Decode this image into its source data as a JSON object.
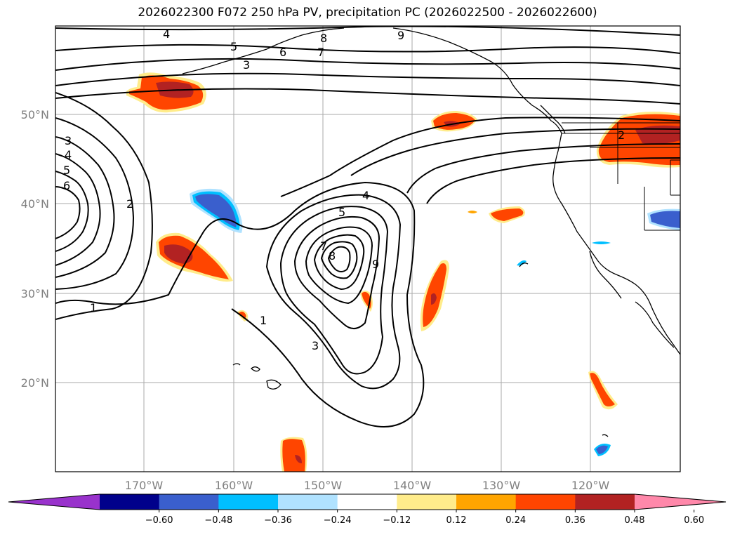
{
  "chart_data": {
    "type": "contour-map",
    "title": "2026022300 F072 250 hPa PV, precipitation PC (2026022500 - 2026022600)",
    "x_ticks": [
      "170°W",
      "160°W",
      "150°W",
      "140°W",
      "130°W",
      "120°W"
    ],
    "y_ticks": [
      "50°N",
      "40°N",
      "30°N",
      "20°N"
    ],
    "grid": true,
    "contour_variable": "250 hPa PV",
    "contour_labels": [
      "4",
      "9",
      "8",
      "5",
      "6",
      "7",
      "3",
      "3",
      "4",
      "5",
      "6",
      "2",
      "1",
      "4",
      "5",
      "7",
      "8",
      "9",
      "1",
      "3",
      "2"
    ],
    "fill_variable": "precipitation PC",
    "colorbar": {
      "ticks": [
        "−0.60",
        "−0.48",
        "−0.36",
        "−0.24",
        "−0.12",
        "0.12",
        "0.24",
        "0.36",
        "0.48",
        "0.60"
      ],
      "colors": [
        "#9932cc",
        "#00008b",
        "#3a5fcd",
        "#00bfff",
        "#b0e2ff",
        "#ffffff",
        "#ffec8b",
        "#ffa500",
        "#ff4500",
        "#b22222",
        "#ff88aa"
      ],
      "extend": "both"
    }
  }
}
